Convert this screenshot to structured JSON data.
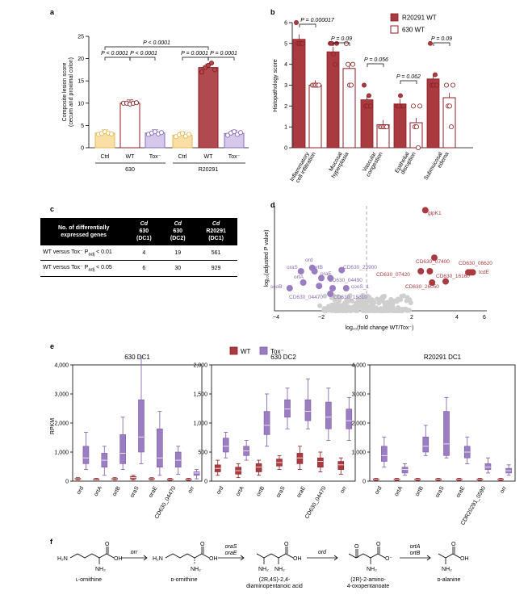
{
  "panels": {
    "a": "a",
    "b": "b",
    "c": "c",
    "d": "d",
    "e": "e",
    "f": "f"
  },
  "colors": {
    "wt": "#a93a3f",
    "wt_dark": "#8b1d22",
    "tox": "#9b7dc2",
    "ctrl": "#f5d58d",
    "ctrl_edge": "#e8b95a",
    "grey": "#cccccc"
  },
  "panel_a": {
    "ylabel_line1": "Composite lesion score",
    "ylabel_line2": "(cecum and proximal colon)",
    "yticks": [
      "0",
      "5",
      "10",
      "15",
      "20",
      "25"
    ],
    "xticks": [
      "Ctrl",
      "WT",
      "Tox⁻",
      "Ctrl",
      "WT",
      "Tox⁻"
    ],
    "groups": [
      "630",
      "R20291"
    ],
    "pvals": [
      "P < 0.0001",
      "P < 0.0001",
      "P < 0.0001",
      "P = 0.0001",
      "P = 0.0001"
    ]
  },
  "chart_data": [
    {
      "type": "bar",
      "panel": "a",
      "categories": [
        "Ctrl",
        "WT",
        "Tox⁻",
        "Ctrl",
        "WT",
        "Tox⁻"
      ],
      "groups": [
        "630",
        "630",
        "630",
        "R20291",
        "R20291",
        "R20291"
      ],
      "values": [
        3.3,
        10,
        3.3,
        2.8,
        18,
        3.2
      ],
      "ylabel": "Composite lesion score (cecum and proximal colon)",
      "ylim": [
        0,
        25
      ]
    },
    {
      "type": "bar",
      "panel": "b",
      "categories": [
        "Inflammatory cell infiltration",
        "Mucosal hyperplasia",
        "Vascular congestion",
        "Epithelial disruption",
        "Submucosal edema"
      ],
      "series": [
        {
          "name": "R20291 WT",
          "values": [
            5.2,
            4.6,
            2.3,
            2.1,
            3.3
          ]
        },
        {
          "name": "630 WT",
          "values": [
            3.0,
            3.8,
            1.1,
            1.2,
            2.4
          ]
        }
      ],
      "ylabel": "Histopathology score",
      "ylim": [
        0,
        6
      ]
    },
    {
      "type": "scatter",
      "panel": "d",
      "ylabel": "log10(adjusted P value)",
      "xlabel": "log10(fold change WT/Tox⁻)",
      "xlim": [
        -4,
        6
      ]
    },
    {
      "type": "box",
      "panel": "e",
      "ylabel": "RPKM",
      "series": [
        "WT",
        "Tox⁻"
      ]
    }
  ],
  "panel_b": {
    "ylabel": "Histopathology score",
    "yticks": [
      "0",
      "1",
      "2",
      "3",
      "4",
      "5",
      "6"
    ],
    "legend": [
      "R20291 WT",
      "630 WT"
    ],
    "categories": [
      [
        "Inflammatory",
        "cell infiltration"
      ],
      [
        "Mucosal",
        "hyperplasia"
      ],
      [
        "Vascular",
        "congestion"
      ],
      [
        "Epithelial",
        "disruption"
      ],
      [
        "Submucosal",
        "edema"
      ]
    ],
    "pvals": [
      "P = 0.000017",
      "P = 0.09",
      "P = 0.056",
      "P = 0.062",
      "P = 0.09"
    ]
  },
  "panel_c": {
    "header": {
      "label_line1": "No. of differentially",
      "label_line2": "expressed genes",
      "cols": [
        [
          "Cd",
          "630",
          "(DC1)"
        ],
        [
          "Cd",
          "630",
          "(DC2)"
        ],
        [
          "Cd",
          "R20291",
          "(DC1)"
        ]
      ]
    },
    "rows": [
      {
        "label": "WT versus Tox⁻ P",
        "sub": "adj",
        "cond": " < 0.01",
        "values": [
          "4",
          "19",
          "561"
        ]
      },
      {
        "label": "WT versus Tox⁻ P",
        "sub": "adj",
        "cond": " < 0.05",
        "values": [
          "6",
          "30",
          "929"
        ]
      }
    ]
  },
  "panel_d": {
    "ylabel": "log₁₀(adjusted P value)",
    "xlabel": "log₁₀(fold change WT/Tox⁻)",
    "xticks": [
      "−4",
      "−2",
      "0",
      "2",
      "4",
      "6"
    ],
    "labels_wt": [
      "glpK1",
      "CD630_07400",
      "CD630_06620",
      "CD630_07420",
      "CD630_16160",
      "tcdE",
      "CD630_26050"
    ],
    "labels_tox": [
      "ord",
      "oraS",
      "ortB",
      "CD630_23900",
      "ortA",
      "oraE",
      "CD630_04490",
      "cooS_1",
      "scoB",
      "CD630_04470",
      "CD630_15810"
    ]
  },
  "panel_e": {
    "legend": [
      "WT",
      "Tox⁻"
    ],
    "ylabel": "RPKM",
    "subplots": [
      {
        "title": "630 DC1",
        "yticks": [
          "0",
          "1,000",
          "2,000",
          "3,000",
          "4,000"
        ],
        "xticks": [
          "ord",
          "ortA",
          "ortB",
          "oraS",
          "oraE",
          "CD630_04470",
          "orr"
        ]
      },
      {
        "title": "630 DC2",
        "yticks": [
          "0",
          "500",
          "1,000",
          "1,500",
          "2,000"
        ],
        "xticks": [
          "ord",
          "ortA",
          "ortB",
          "oraS",
          "oraE",
          "CD630_04470",
          "orr"
        ]
      },
      {
        "title": "R20291 DC1",
        "yticks": [
          "0",
          "1,000",
          "2,000",
          "3,000",
          "4,000"
        ],
        "xticks": [
          "ord",
          "ortA",
          "ortB",
          "oraS",
          "oraE",
          "CDR20291_0590",
          "orr"
        ]
      }
    ]
  },
  "panel_f": {
    "compounds": [
      "ʟ-ornithine",
      "ᴅ-ornithine",
      "(2R,4S)-2,4-",
      "diaminopentanoic acid",
      "(2R)-2-amino-",
      "4-oxopentanoate",
      "ᴅ-alanine"
    ],
    "enzymes": [
      "orr",
      "oraS",
      "oraE",
      "ord",
      "ortA",
      "ortB"
    ],
    "atoms": {
      "h2n": "H₂N",
      "nh2": "NH₂",
      "oh": "OH",
      "o": "O",
      "ominus": "O⁻"
    }
  }
}
